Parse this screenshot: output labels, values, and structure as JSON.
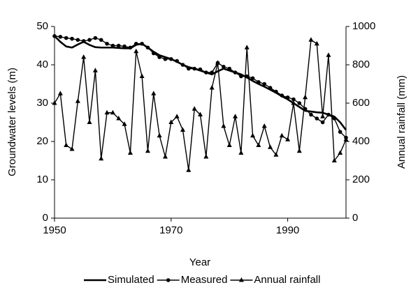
{
  "chart_data": {
    "type": "line",
    "x_label": "Year",
    "y_label": "Groundwater levels (m)",
    "y2_label": "Annual rainfall (mm)",
    "x": [
      1950,
      1951,
      1952,
      1953,
      1954,
      1955,
      1956,
      1957,
      1958,
      1959,
      1960,
      1961,
      1962,
      1963,
      1964,
      1965,
      1966,
      1967,
      1968,
      1969,
      1970,
      1971,
      1972,
      1973,
      1974,
      1975,
      1976,
      1977,
      1978,
      1979,
      1980,
      1981,
      1982,
      1983,
      1984,
      1985,
      1986,
      1987,
      1988,
      1989,
      1990,
      1991,
      1992,
      1993,
      1994,
      1995,
      1996,
      1997,
      1998,
      1999,
      2000
    ],
    "xlim": [
      1950,
      2000
    ],
    "xticks": [
      1950,
      1970,
      1990
    ],
    "ylim": [
      0,
      50
    ],
    "yticks": [
      0,
      10,
      20,
      30,
      40,
      50
    ],
    "y2lim": [
      0,
      1000
    ],
    "y2ticks": [
      0,
      200,
      400,
      600,
      800,
      1000
    ],
    "legend": "bottom",
    "series": [
      {
        "name": "Simulated",
        "color": "#000000",
        "marker": "none",
        "values": [
          47.5,
          46,
          44.8,
          44.5,
          45.3,
          46,
          45.2,
          44.6,
          44.5,
          44.5,
          44.5,
          44.4,
          44.3,
          44.3,
          45.2,
          45.5,
          44.5,
          43.4,
          42.5,
          42,
          41.5,
          40.8,
          40,
          39.4,
          39,
          38.5,
          38,
          37.5,
          38.3,
          39,
          38.5,
          38,
          37.5,
          36.7,
          35.8,
          35,
          34.3,
          33.5,
          32.7,
          31.8,
          31,
          30,
          29,
          28,
          27.8,
          27.6,
          27.5,
          27,
          26.5,
          25,
          23
        ]
      },
      {
        "name": "Measured",
        "color": "#000000",
        "marker": "circle",
        "values": [
          47.5,
          47.3,
          47,
          46.8,
          46.5,
          46.2,
          46.5,
          47,
          46.5,
          45.5,
          45,
          45,
          44.8,
          44.5,
          45.5,
          45.5,
          44.5,
          43,
          42,
          41.5,
          41.5,
          41,
          40,
          39,
          39,
          38.8,
          38,
          38,
          40.5,
          39.5,
          39,
          38,
          37,
          37,
          36.5,
          35.5,
          35,
          34,
          33,
          32,
          31.5,
          31,
          30,
          28.5,
          27,
          26,
          25,
          27,
          26,
          22.5,
          21
        ]
      },
      {
        "name": "Annual rainfall",
        "color": "#000000",
        "marker": "triangle",
        "axis": "y2",
        "values": [
          600,
          650,
          380,
          360,
          610,
          840,
          500,
          770,
          310,
          550,
          550,
          520,
          490,
          340,
          870,
          740,
          350,
          650,
          430,
          320,
          500,
          530,
          460,
          250,
          570,
          540,
          320,
          680,
          810,
          480,
          380,
          530,
          340,
          890,
          430,
          380,
          480,
          370,
          330,
          430,
          410,
          600,
          350,
          630,
          930,
          910,
          530,
          850,
          300,
          340,
          410
        ]
      }
    ]
  }
}
